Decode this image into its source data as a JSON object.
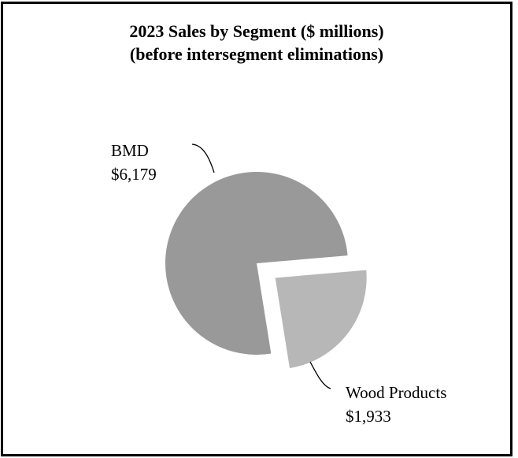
{
  "chart_data": {
    "type": "pie",
    "title": "2023 Sales by Segment ($ millions)",
    "subtitle": "(before intersegment eliminations)",
    "categories": [
      "BMD",
      "Wood Products"
    ],
    "values": [
      6179,
      1933
    ],
    "value_labels": [
      "$6,179",
      "$1,933"
    ],
    "exploded": [
      false,
      true
    ],
    "colors": [
      "#999999",
      "#b7b7b7"
    ],
    "legend": "none",
    "label_style": "callout"
  }
}
